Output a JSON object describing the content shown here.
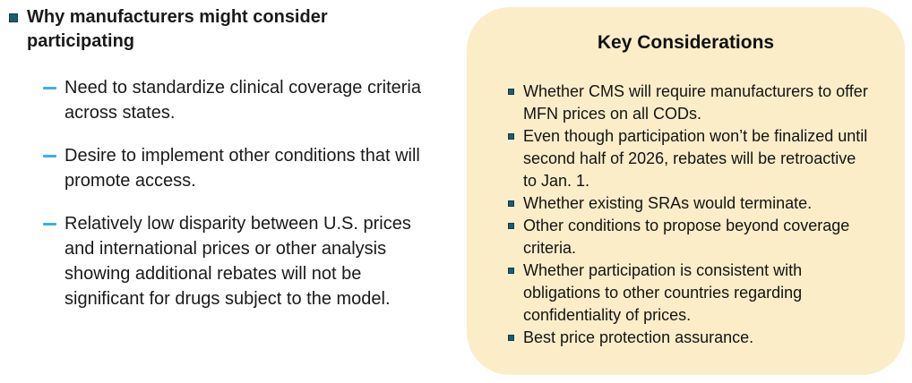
{
  "left_panel": {
    "heading": {
      "text": "Why manufacturers might consider participating"
    },
    "items": [
      {
        "text": "Need to standardize clinical coverage criteria across states."
      },
      {
        "text": "Desire to implement other conditions that will promote access."
      },
      {
        "text": "Relatively low disparity between U.S. prices and international prices or other analysis showing additional rebates will not be significant for drugs subject to the model."
      }
    ]
  },
  "key_considerations_box": {
    "title": "Key Considerations",
    "items": [
      {
        "text": "Whether CMS will require manufacturers to offer MFN prices on all CODs."
      },
      {
        "text": "Even though participation won’t be finalized until second half of 2026, rebates will be retroactive to Jan. 1."
      },
      {
        "text": "Whether existing SRAs would terminate."
      },
      {
        "text": "Other conditions to propose beyond coverage criteria."
      },
      {
        "text": "Whether participation is consistent with obligations to other countries regarding confidentiality of prices."
      },
      {
        "text": "Best price protection assurance."
      }
    ]
  },
  "colors": {
    "box_background": "#faedc8",
    "square_bullet": "#1d5b70",
    "dash_bullet": "#3fafe4",
    "text": "#1a1a1a",
    "page_background": "#ffffff"
  },
  "icons": {
    "level1_marker": "square-bullet-icon",
    "level2_marker": "dash-bullet-icon"
  }
}
